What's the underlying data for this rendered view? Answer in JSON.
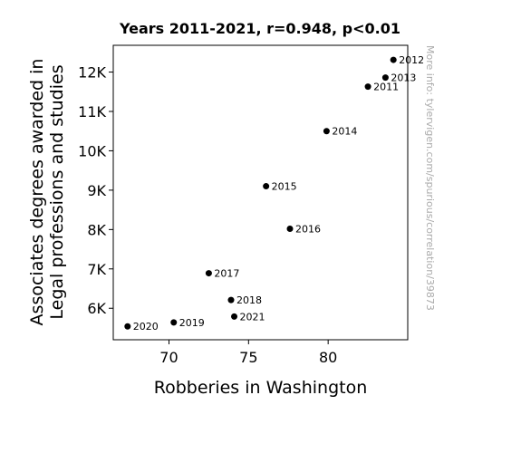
{
  "chart_data": {
    "type": "scatter",
    "title": "Years 2011-2021, r=0.948, p<0.01",
    "xlabel": "Robberies in Washington",
    "ylabel_lines": [
      "Associates degrees awarded in",
      "Legal professions and studies"
    ],
    "watermark": "More info: tylervigen.com/spurious/correlation/39873",
    "xlim": [
      66.5,
      85.0
    ],
    "ylim": [
      5200,
      12680
    ],
    "x_ticks": [
      70,
      75,
      80
    ],
    "x_tick_labels": [
      "70",
      "75",
      "80"
    ],
    "y_ticks": [
      6000,
      7000,
      8000,
      9000,
      10000,
      11000,
      12000
    ],
    "y_tick_labels": [
      "6K",
      "7K",
      "8K",
      "9K",
      "10K",
      "11K",
      "12K"
    ],
    "grid": false,
    "legend": "none",
    "points": [
      {
        "label": "2011",
        "x": 82.5,
        "y": 11630
      },
      {
        "label": "2012",
        "x": 84.1,
        "y": 12310
      },
      {
        "label": "2013",
        "x": 83.6,
        "y": 11860
      },
      {
        "label": "2014",
        "x": 79.9,
        "y": 10500
      },
      {
        "label": "2015",
        "x": 76.1,
        "y": 9100
      },
      {
        "label": "2016",
        "x": 77.6,
        "y": 8020
      },
      {
        "label": "2017",
        "x": 72.5,
        "y": 6890
      },
      {
        "label": "2018",
        "x": 73.9,
        "y": 6210
      },
      {
        "label": "2019",
        "x": 70.3,
        "y": 5640
      },
      {
        "label": "2020",
        "x": 67.4,
        "y": 5540
      },
      {
        "label": "2021",
        "x": 74.1,
        "y": 5790
      }
    ],
    "colors": {
      "point": "#000000",
      "axis": "#000000",
      "watermark": "#aaaaaa",
      "background": "#ffffff"
    }
  }
}
